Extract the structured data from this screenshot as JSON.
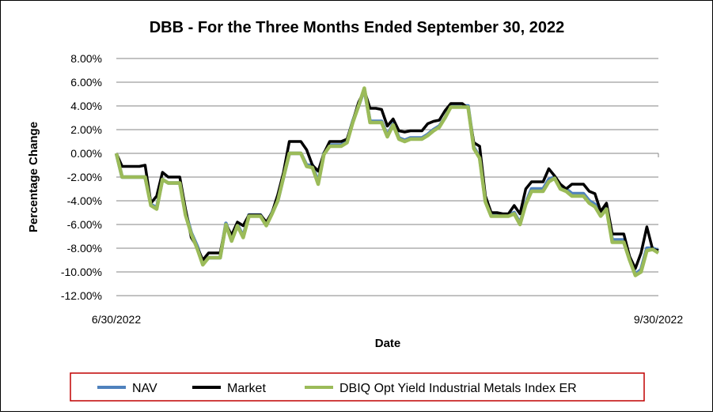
{
  "chart_data": {
    "type": "line",
    "title": "DBB - For the Three Months Ended September 30, 2022",
    "xlabel": "Date",
    "ylabel": "Percentage Change",
    "x_tick_labels": [
      "6/30/2022",
      "9/30/2022"
    ],
    "y_ticks": [
      8,
      6,
      4,
      2,
      0,
      -2,
      -4,
      -6,
      -8,
      -10,
      -12
    ],
    "y_tick_labels": [
      "8.00%",
      "6.00%",
      "4.00%",
      "2.00%",
      "0.00%",
      "-2.00%",
      "-4.00%",
      "-6.00%",
      "-8.00%",
      "-10.00%",
      "-12.00%"
    ],
    "ylim": [
      -12,
      8
    ],
    "grid": "horizontal",
    "legend_position": "bottom",
    "series": [
      {
        "name": "NAV",
        "color": "#4f81bd",
        "values": [
          0.0,
          -2.0,
          -2.0,
          -2.0,
          -2.0,
          -2.0,
          -4.3,
          -4.6,
          -2.2,
          -2.5,
          -2.5,
          -2.5,
          -5.0,
          -6.7,
          -7.8,
          -9.3,
          -8.8,
          -8.8,
          -8.8,
          -5.9,
          -7.3,
          -6.0,
          -7.0,
          -5.2,
          -5.2,
          -5.2,
          -6.0,
          -5.0,
          -4.0,
          -2.0,
          0.0,
          0.0,
          0.0,
          -1.0,
          -1.0,
          -2.5,
          0.0,
          0.7,
          0.7,
          0.7,
          1.0,
          2.7,
          4.0,
          5.4,
          2.7,
          2.7,
          2.7,
          1.5,
          2.5,
          1.3,
          1.1,
          1.3,
          1.3,
          1.3,
          1.6,
          2.0,
          2.3,
          3.0,
          4.0,
          4.0,
          4.0,
          4.0,
          0.5,
          -0.3,
          -4.0,
          -5.2,
          -5.2,
          -5.2,
          -5.2,
          -5.0,
          -5.9,
          -4.2,
          -3.0,
          -3.0,
          -3.0,
          -2.2,
          -2.0,
          -2.8,
          -3.0,
          -3.4,
          -3.4,
          -3.4,
          -4.0,
          -4.3,
          -5.0,
          -4.5,
          -7.3,
          -7.3,
          -7.3,
          -8.8,
          -10.2,
          -9.8,
          -8.0,
          -8.0,
          -8.2
        ]
      },
      {
        "name": "Market",
        "color": "#000000",
        "values": [
          0.0,
          -1.1,
          -1.1,
          -1.1,
          -1.1,
          -1.0,
          -4.2,
          -3.6,
          -1.6,
          -2.0,
          -2.0,
          -2.0,
          -4.7,
          -7.1,
          -7.9,
          -9.0,
          -8.4,
          -8.4,
          -8.4,
          -6.0,
          -6.9,
          -5.8,
          -6.1,
          -5.2,
          -5.2,
          -5.2,
          -5.8,
          -5.0,
          -3.5,
          -1.6,
          1.0,
          1.0,
          1.0,
          0.3,
          -1.0,
          -1.5,
          0.0,
          1.0,
          1.0,
          1.0,
          1.2,
          2.7,
          4.3,
          5.3,
          3.8,
          3.8,
          3.7,
          2.3,
          2.9,
          1.9,
          1.8,
          1.9,
          1.9,
          1.9,
          2.5,
          2.7,
          2.8,
          3.6,
          4.2,
          4.2,
          4.2,
          3.8,
          0.9,
          0.6,
          -3.6,
          -5.0,
          -5.0,
          -5.1,
          -5.1,
          -4.4,
          -5.1,
          -3.0,
          -2.4,
          -2.4,
          -2.4,
          -1.3,
          -1.9,
          -2.6,
          -3.0,
          -2.6,
          -2.6,
          -2.6,
          -3.2,
          -3.4,
          -4.9,
          -4.2,
          -6.8,
          -6.8,
          -6.8,
          -8.7,
          -9.7,
          -8.4,
          -6.2,
          -8.1,
          -8.2
        ]
      },
      {
        "name": "DBIQ Opt Yield Industrial Metals Index ER",
        "color": "#9bbb59",
        "values": [
          0.0,
          -2.0,
          -2.0,
          -2.0,
          -2.0,
          -2.0,
          -4.4,
          -4.7,
          -2.2,
          -2.5,
          -2.5,
          -2.5,
          -5.2,
          -6.8,
          -8.0,
          -9.4,
          -8.8,
          -8.8,
          -8.8,
          -6.0,
          -7.4,
          -6.1,
          -7.1,
          -5.3,
          -5.3,
          -5.3,
          -6.1,
          -5.1,
          -4.0,
          -2.0,
          0.0,
          0.0,
          0.0,
          -1.1,
          -1.2,
          -2.6,
          -0.1,
          0.6,
          0.6,
          0.6,
          0.9,
          2.6,
          4.0,
          5.5,
          2.6,
          2.6,
          2.6,
          1.4,
          2.4,
          1.2,
          1.0,
          1.2,
          1.2,
          1.2,
          1.5,
          1.9,
          2.2,
          3.0,
          3.9,
          3.9,
          3.9,
          3.9,
          0.4,
          -0.4,
          -4.1,
          -5.3,
          -5.3,
          -5.3,
          -5.3,
          -5.1,
          -6.0,
          -4.3,
          -3.2,
          -3.2,
          -3.2,
          -2.4,
          -2.1,
          -3.0,
          -3.2,
          -3.6,
          -3.6,
          -3.6,
          -4.2,
          -4.5,
          -5.3,
          -4.7,
          -7.5,
          -7.5,
          -7.5,
          -9.0,
          -10.3,
          -10.0,
          -8.2,
          -8.1,
          -8.4
        ]
      }
    ]
  }
}
